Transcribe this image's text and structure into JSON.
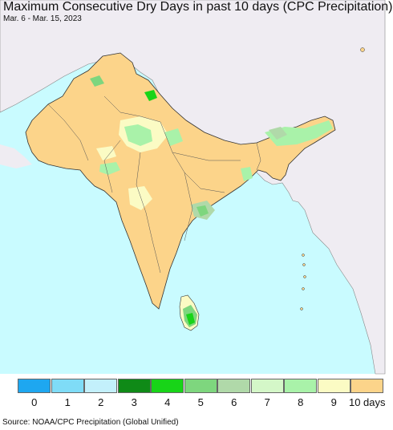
{
  "title": "Maximum Consecutive Dry Days in past 10 days (CPC Precipitation)",
  "date_range": "Mar. 6 - Mar. 15, 2023",
  "source": "Source: NOAA/CPC Precipitation (Global Unified)",
  "legend": {
    "labels": [
      "0",
      "1",
      "2",
      "3",
      "4",
      "5",
      "6",
      "7",
      "8",
      "9",
      "10 days"
    ],
    "colors": [
      "#1ea7f0",
      "#7fdcf7",
      "#c3f0fb",
      "#0f8a17",
      "#18d418",
      "#7ed67e",
      "#b0d9a9",
      "#d4f7c8",
      "#a9f2a9",
      "#fbfbc4",
      "#fcd48a"
    ]
  },
  "map_colors": {
    "ocean": "#c9fbff",
    "land_other": "#efecf2",
    "dry_10": "#fcd48a",
    "dry_9": "#fbfbc4",
    "dry_8": "#a9f2a9",
    "dry_6": "#b0d9a9",
    "dry_5": "#7ed67e",
    "dry_4": "#18d418",
    "border": "#333333"
  }
}
